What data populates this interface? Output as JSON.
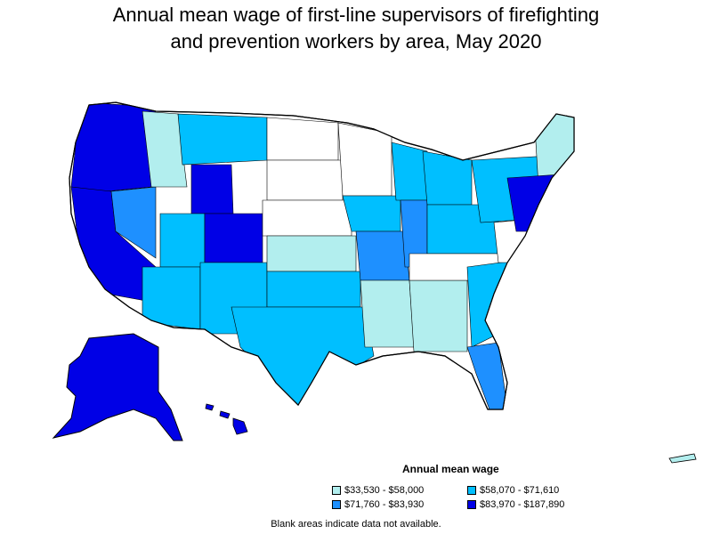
{
  "title_line1": "Annual mean wage of first-line supervisors of firefighting",
  "title_line2": "and prevention workers by area, May 2020",
  "legend": {
    "title": "Annual mean wage",
    "items": [
      {
        "label": "$33,530 - $58,000",
        "color": "#b2eeee"
      },
      {
        "label": "$58,070 - $71,610",
        "color": "#00bfff"
      },
      {
        "label": "$71,760 - $83,930",
        "color": "#1e90ff"
      },
      {
        "label": "$83,970 - $187,890",
        "color": "#0000e6"
      }
    ]
  },
  "note": "Blank areas indicate data not available."
}
